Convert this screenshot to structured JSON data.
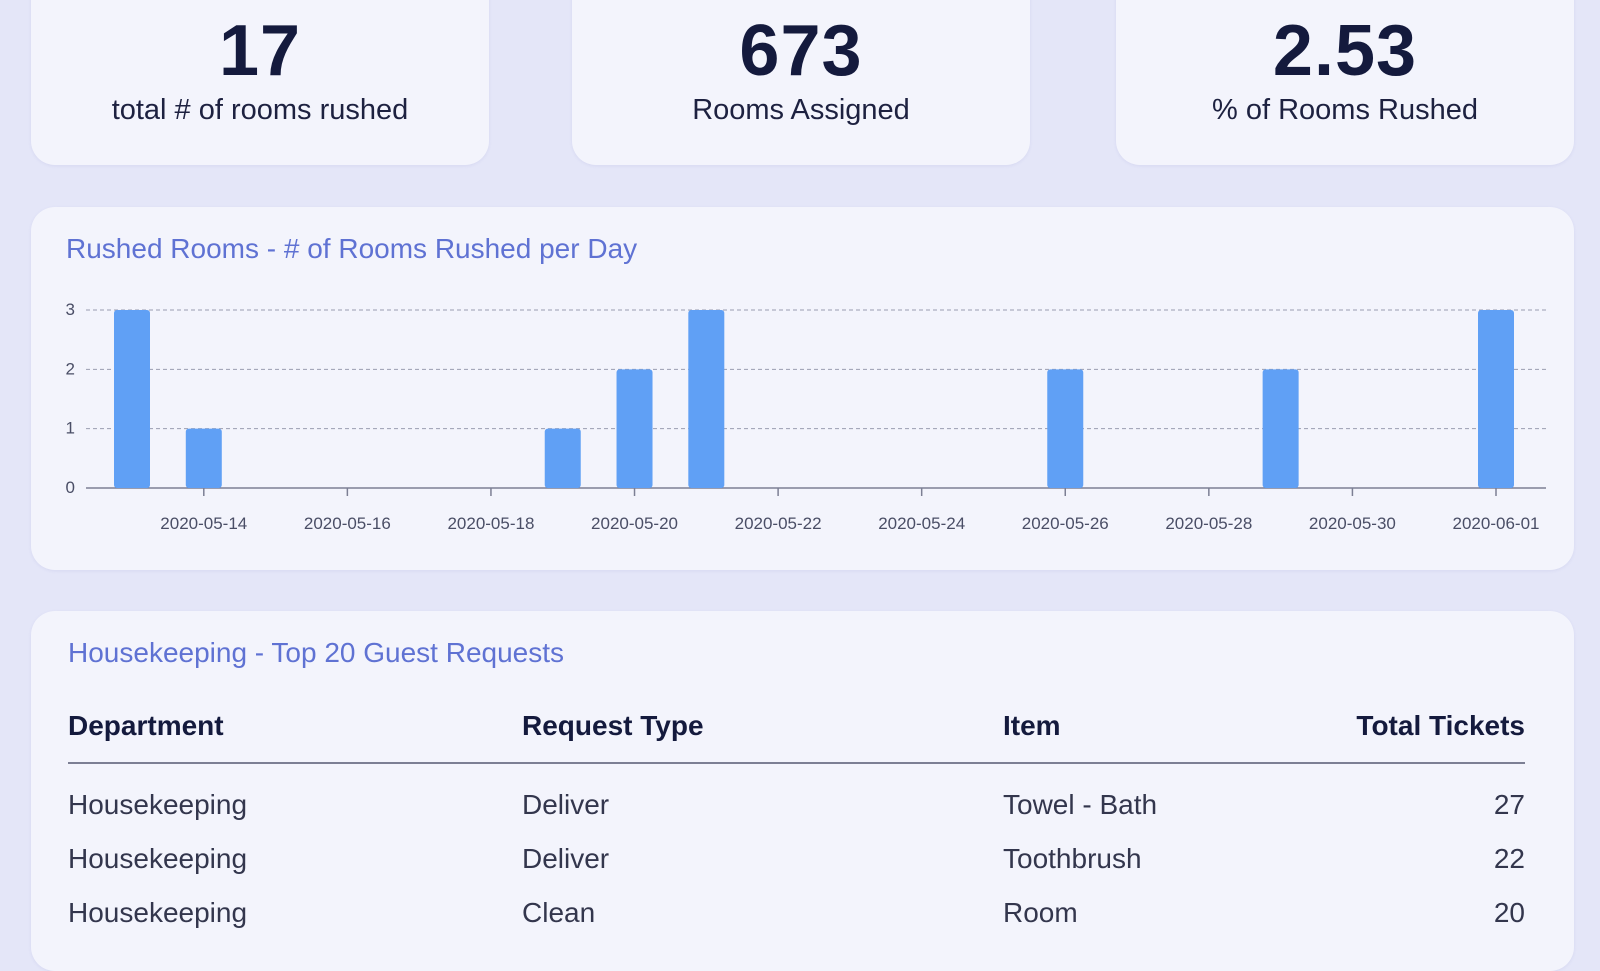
{
  "kpis": [
    {
      "value": "17",
      "label": "total # of rooms rushed"
    },
    {
      "value": "673",
      "label": "Rooms Assigned"
    },
    {
      "value": "2.53",
      "label": "% of Rooms Rushed"
    }
  ],
  "chart_title": "Rushed Rooms - # of Rooms Rushed per Day",
  "chart_data": {
    "type": "bar",
    "title": "Rushed Rooms - # of Rooms Rushed per Day",
    "xlabel": "",
    "ylabel": "",
    "ylim": [
      0,
      3
    ],
    "yticks": [
      0,
      1,
      2,
      3
    ],
    "x_range": [
      "2020-05-13",
      "2020-06-01"
    ],
    "xticks": [
      "2020-05-14",
      "2020-05-16",
      "2020-05-18",
      "2020-05-20",
      "2020-05-22",
      "2020-05-24",
      "2020-05-26",
      "2020-05-28",
      "2020-05-30",
      "2020-06-01"
    ],
    "grid": true,
    "color": "#60a0f5",
    "categories": [
      "2020-05-13",
      "2020-05-14",
      "2020-05-19",
      "2020-05-20",
      "2020-05-21",
      "2020-05-26",
      "2020-05-29",
      "2020-06-01"
    ],
    "values": [
      3,
      1,
      1,
      2,
      3,
      2,
      2,
      3
    ]
  },
  "table": {
    "title": "Housekeeping - Top 20 Guest Requests",
    "headers": [
      "Department",
      "Request Type",
      "Item",
      "Total Tickets"
    ],
    "rows": [
      [
        "Housekeeping",
        "Deliver",
        "Towel - Bath",
        "27"
      ],
      [
        "Housekeeping",
        "Deliver",
        "Toothbrush",
        "22"
      ],
      [
        "Housekeeping",
        "Clean",
        "Room",
        "20"
      ]
    ]
  }
}
